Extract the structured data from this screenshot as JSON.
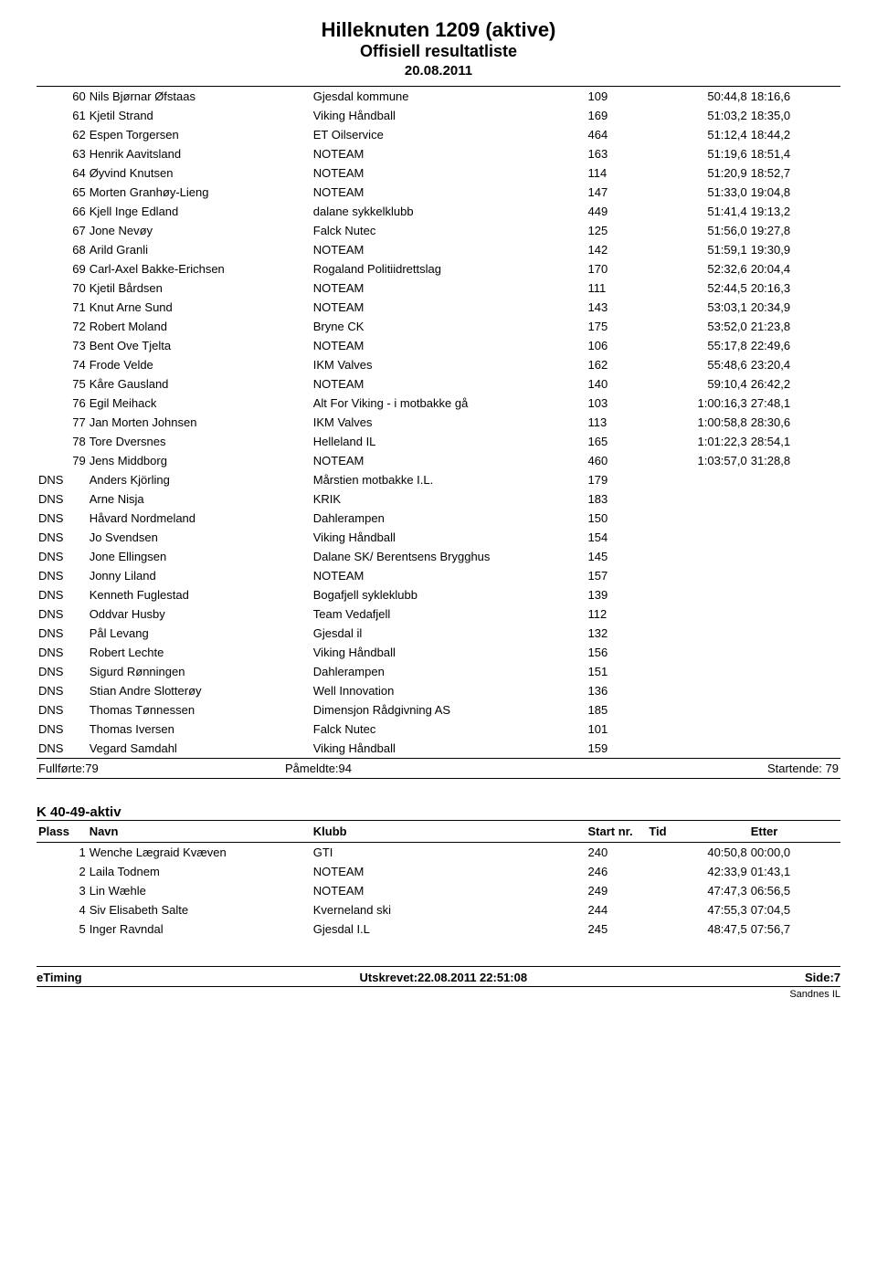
{
  "header": {
    "title": "Hilleknuten 1209 (aktive)",
    "subtitle": "Offisiell resultatliste",
    "date": "20.08.2011"
  },
  "main_results": [
    {
      "place": "60",
      "name": "Nils Bjørnar Øfstaas",
      "club": "Gjesdal kommune",
      "start": "109",
      "time": "50:44,8",
      "diff": "18:16,6"
    },
    {
      "place": "61",
      "name": "Kjetil Strand",
      "club": "Viking Håndball",
      "start": "169",
      "time": "51:03,2",
      "diff": "18:35,0"
    },
    {
      "place": "62",
      "name": "Espen Torgersen",
      "club": "ET Oilservice",
      "start": "464",
      "time": "51:12,4",
      "diff": "18:44,2"
    },
    {
      "place": "63",
      "name": "Henrik Aavitsland",
      "club": "NOTEAM",
      "start": "163",
      "time": "51:19,6",
      "diff": "18:51,4"
    },
    {
      "place": "64",
      "name": "Øyvind Knutsen",
      "club": "NOTEAM",
      "start": "114",
      "time": "51:20,9",
      "diff": "18:52,7"
    },
    {
      "place": "65",
      "name": "Morten Granhøy-Lieng",
      "club": "NOTEAM",
      "start": "147",
      "time": "51:33,0",
      "diff": "19:04,8"
    },
    {
      "place": "66",
      "name": "Kjell Inge Edland",
      "club": "dalane sykkelklubb",
      "start": "449",
      "time": "51:41,4",
      "diff": "19:13,2"
    },
    {
      "place": "67",
      "name": "Jone Nevøy",
      "club": "Falck Nutec",
      "start": "125",
      "time": "51:56,0",
      "diff": "19:27,8"
    },
    {
      "place": "68",
      "name": "Arild Granli",
      "club": "NOTEAM",
      "start": "142",
      "time": "51:59,1",
      "diff": "19:30,9"
    },
    {
      "place": "69",
      "name": "Carl-Axel Bakke-Erichsen",
      "club": "Rogaland Politiidrettslag",
      "start": "170",
      "time": "52:32,6",
      "diff": "20:04,4"
    },
    {
      "place": "70",
      "name": "Kjetil Bårdsen",
      "club": "NOTEAM",
      "start": "111",
      "time": "52:44,5",
      "diff": "20:16,3"
    },
    {
      "place": "71",
      "name": "Knut Arne Sund",
      "club": "NOTEAM",
      "start": "143",
      "time": "53:03,1",
      "diff": "20:34,9"
    },
    {
      "place": "72",
      "name": "Robert Moland",
      "club": "Bryne CK",
      "start": "175",
      "time": "53:52,0",
      "diff": "21:23,8"
    },
    {
      "place": "73",
      "name": "Bent Ove Tjelta",
      "club": "NOTEAM",
      "start": "106",
      "time": "55:17,8",
      "diff": "22:49,6"
    },
    {
      "place": "74",
      "name": "Frode Velde",
      "club": "IKM Valves",
      "start": "162",
      "time": "55:48,6",
      "diff": "23:20,4"
    },
    {
      "place": "75",
      "name": "Kåre Gausland",
      "club": "NOTEAM",
      "start": "140",
      "time": "59:10,4",
      "diff": "26:42,2"
    },
    {
      "place": "76",
      "name": "Egil Meihack",
      "club": "Alt For Viking - i motbakke gå",
      "start": "103",
      "time": "1:00:16,3",
      "diff": "27:48,1"
    },
    {
      "place": "77",
      "name": "Jan Morten Johnsen",
      "club": "IKM Valves",
      "start": "113",
      "time": "1:00:58,8",
      "diff": "28:30,6"
    },
    {
      "place": "78",
      "name": "Tore Dversnes",
      "club": "Helleland IL",
      "start": "165",
      "time": "1:01:22,3",
      "diff": "28:54,1"
    },
    {
      "place": "79",
      "name": "Jens Middborg",
      "club": "NOTEAM",
      "start": "460",
      "time": "1:03:57,0",
      "diff": "31:28,8"
    },
    {
      "place": "DNS",
      "name": "Anders Kjörling",
      "club": "Mårstien motbakke I.L.",
      "start": "179",
      "time": "",
      "diff": ""
    },
    {
      "place": "DNS",
      "name": "Arne Nisja",
      "club": "KRIK",
      "start": "183",
      "time": "",
      "diff": ""
    },
    {
      "place": "DNS",
      "name": "Håvard Nordmeland",
      "club": "Dahlerampen",
      "start": "150",
      "time": "",
      "diff": ""
    },
    {
      "place": "DNS",
      "name": "Jo Svendsen",
      "club": "Viking Håndball",
      "start": "154",
      "time": "",
      "diff": ""
    },
    {
      "place": "DNS",
      "name": "Jone Ellingsen",
      "club": "Dalane SK/ Berentsens Brygghus",
      "start": "145",
      "time": "",
      "diff": ""
    },
    {
      "place": "DNS",
      "name": "Jonny Liland",
      "club": "NOTEAM",
      "start": "157",
      "time": "",
      "diff": ""
    },
    {
      "place": "DNS",
      "name": "Kenneth Fuglestad",
      "club": "Bogafjell sykleklubb",
      "start": "139",
      "time": "",
      "diff": ""
    },
    {
      "place": "DNS",
      "name": "Oddvar Husby",
      "club": "Team Vedafjell",
      "start": "112",
      "time": "",
      "diff": ""
    },
    {
      "place": "DNS",
      "name": "Pål Levang",
      "club": "Gjesdal il",
      "start": "132",
      "time": "",
      "diff": ""
    },
    {
      "place": "DNS",
      "name": "Robert Lechte",
      "club": "Viking Håndball",
      "start": "156",
      "time": "",
      "diff": ""
    },
    {
      "place": "DNS",
      "name": "Sigurd Rønningen",
      "club": "Dahlerampen",
      "start": "151",
      "time": "",
      "diff": ""
    },
    {
      "place": "DNS",
      "name": "Stian Andre Slotterøy",
      "club": "Well Innovation",
      "start": "136",
      "time": "",
      "diff": ""
    },
    {
      "place": "DNS",
      "name": "Thomas Tønnessen",
      "club": "Dimensjon Rådgivning AS",
      "start": "185",
      "time": "",
      "diff": ""
    },
    {
      "place": "DNS",
      "name": "Thomas Iversen",
      "club": "Falck Nutec",
      "start": "101",
      "time": "",
      "diff": ""
    },
    {
      "place": "DNS",
      "name": "Vegard Samdahl",
      "club": "Viking Håndball",
      "start": "159",
      "time": "",
      "diff": ""
    }
  ],
  "summary": {
    "completed": "Fullførte:79",
    "registered": "Påmeldte:94",
    "starting": "Startende: 79"
  },
  "category2": {
    "title": "K 40-49-aktiv",
    "columns": {
      "place": "Plass",
      "name": "Navn",
      "club": "Klubb",
      "start": "Start nr.",
      "time": "Tid",
      "diff": "Etter"
    },
    "rows": [
      {
        "place": "1",
        "name": "Wenche Lægraid Kvæven",
        "club": "GTI",
        "start": "240",
        "time": "40:50,8",
        "diff": "00:00,0"
      },
      {
        "place": "2",
        "name": "Laila Todnem",
        "club": "NOTEAM",
        "start": "246",
        "time": "42:33,9",
        "diff": "01:43,1"
      },
      {
        "place": "3",
        "name": "Lin Wæhle",
        "club": "NOTEAM",
        "start": "249",
        "time": "47:47,3",
        "diff": "06:56,5"
      },
      {
        "place": "4",
        "name": "Siv Elisabeth Salte",
        "club": "Kverneland ski",
        "start": "244",
        "time": "47:55,3",
        "diff": "07:04,5"
      },
      {
        "place": "5",
        "name": "Inger Ravndal",
        "club": "Gjesdal I.L",
        "start": "245",
        "time": "48:47,5",
        "diff": "07:56,7"
      }
    ]
  },
  "footer": {
    "left": "eTiming",
    "center": "Utskrevet:22.08.2011 22:51:08",
    "right": "Side:7",
    "sub": "Sandnes IL"
  }
}
